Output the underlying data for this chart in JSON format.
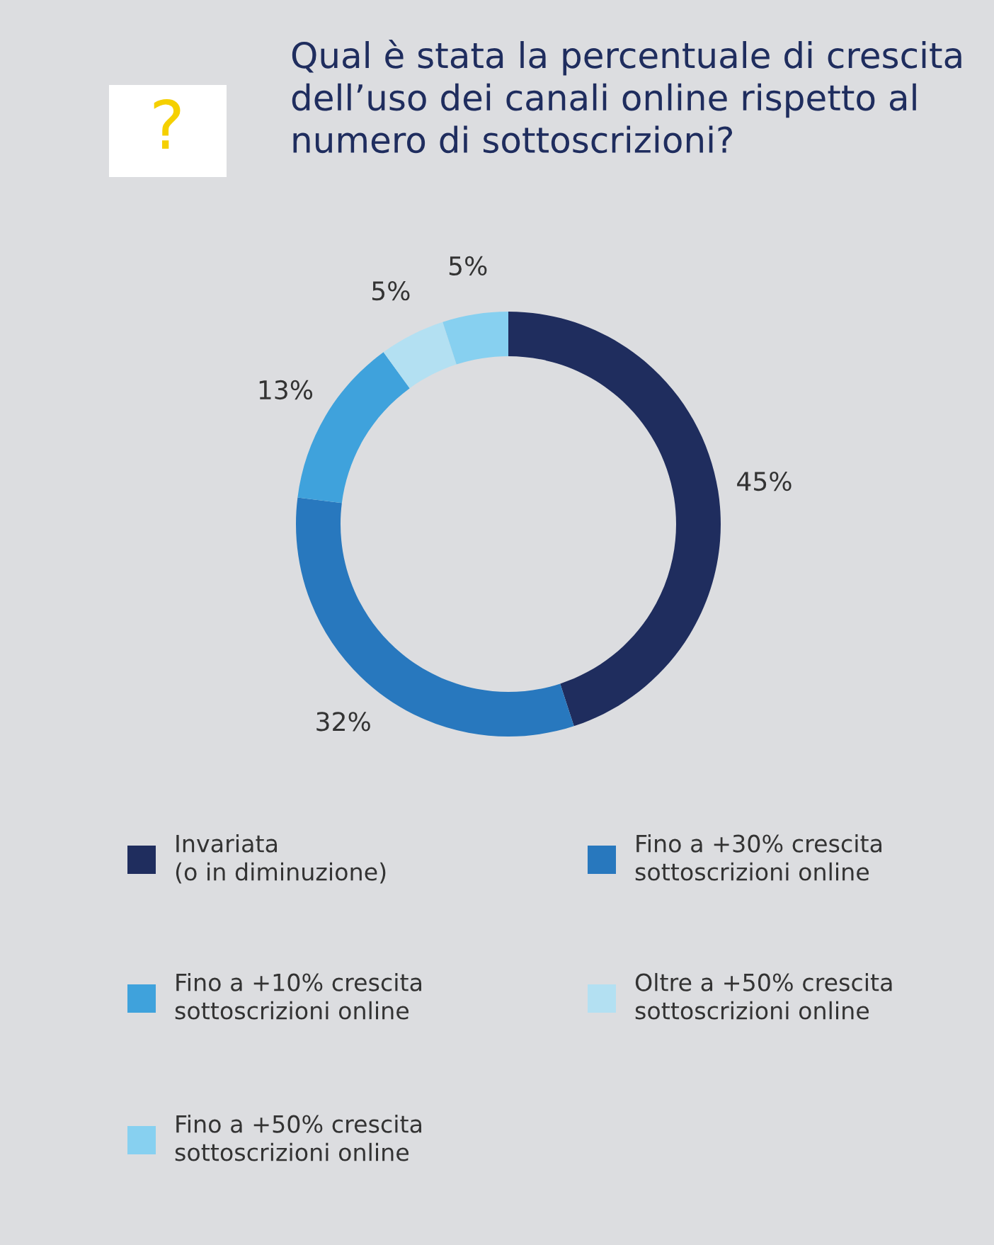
{
  "chart_data": {
    "type": "donut",
    "title": "Qual è stata la percentuale di crescita dell’uso dei canali online rispetto al numero di sottoscrizioni?",
    "categories": [
      "Invariata\n(o in diminuzione)",
      "Fino a +30% crescita\nsottoscrizioni online",
      "Fino a +10% crescita\nsottoscrizioni online",
      "Oltre a +50% crescita\nsottoscrizioni online",
      "Fino a +50% crescita\nsottoscrizioni online"
    ],
    "values": [
      45,
      32,
      13,
      5,
      5
    ],
    "value_labels": [
      "45%",
      "32%",
      "13%",
      "5%",
      "5%"
    ],
    "colors": [
      "#1f2d5e",
      "#2878be",
      "#3fa2dc",
      "#b3e0f2",
      "#87d0f0"
    ],
    "annotations": [
      "?"
    ],
    "legend": "bottom"
  }
}
